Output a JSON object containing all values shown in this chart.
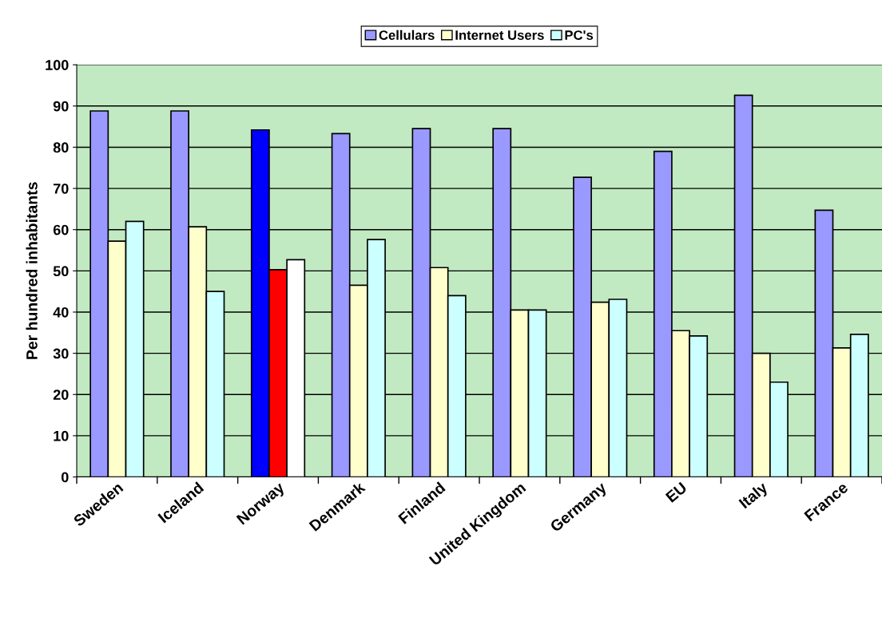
{
  "chart_data": {
    "type": "bar",
    "ylabel": "Per hundred inhabitants",
    "categories": [
      "Sweden",
      "Iceland",
      "Norway",
      "Denmark",
      "Finland",
      "United Kingdom",
      "Germany",
      "EU",
      "Italy",
      "France"
    ],
    "series": [
      {
        "name": "Cellulars",
        "color": "#9999ff",
        "colors": [
          "#9999ff",
          "#9999ff",
          "#0000ff",
          "#9999ff",
          "#9999ff",
          "#9999ff",
          "#9999ff",
          "#9999ff",
          "#9999ff",
          "#9999ff"
        ],
        "values": [
          88.8,
          88.8,
          84.2,
          83.3,
          84.5,
          84.5,
          72.7,
          79,
          92.6,
          64.7
        ]
      },
      {
        "name": "Internet Users",
        "color": "#ffffcc",
        "colors": [
          "#ffffcc",
          "#ffffcc",
          "#ff0000",
          "#ffffcc",
          "#ffffcc",
          "#ffffcc",
          "#ffffcc",
          "#ffffcc",
          "#ffffcc",
          "#ffffcc"
        ],
        "values": [
          57.2,
          60.7,
          50.3,
          46.5,
          50.8,
          40.5,
          42.4,
          35.5,
          30,
          31.3
        ]
      },
      {
        "name": "PC's",
        "color": "#ccffff",
        "colors": [
          "#ccffff",
          "#ccffff",
          "#ffffff",
          "#ccffff",
          "#ccffff",
          "#ccffff",
          "#ccffff",
          "#ccffff",
          "#ccffff",
          "#ccffff"
        ],
        "values": [
          62,
          45,
          52.7,
          57.6,
          44,
          40.5,
          43.1,
          34.2,
          23,
          34.6
        ]
      }
    ],
    "ylim": [
      0,
      100
    ],
    "yticks": [
      0,
      10,
      20,
      30,
      40,
      50,
      60,
      70,
      80,
      90,
      100
    ],
    "grid": "y",
    "legend": "top"
  }
}
